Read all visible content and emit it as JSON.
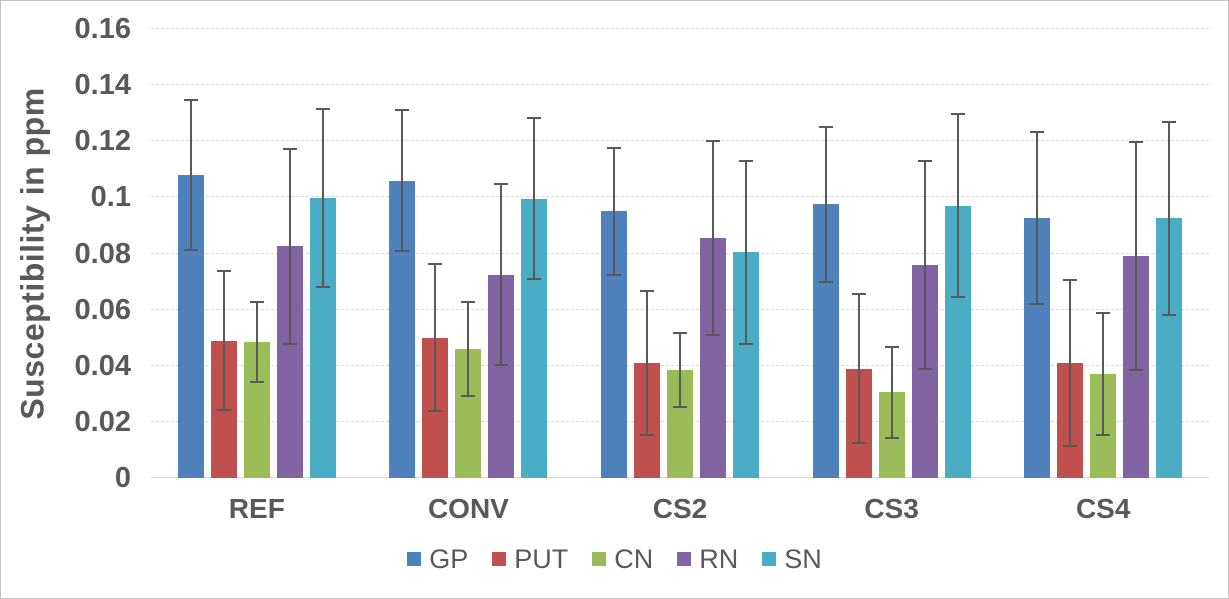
{
  "window": {
    "background": "#ffffff",
    "border_color": "#c3c3c3"
  },
  "chart_data": {
    "type": "bar",
    "title": "",
    "ylabel": "Susceptibility  in ppm",
    "xlabel": "",
    "ylim": [
      0,
      0.16
    ],
    "ytick_values": [
      0,
      0.02,
      0.04,
      0.06,
      0.08,
      0.1,
      0.12,
      0.14,
      0.16
    ],
    "ytick_labels": [
      "0",
      "0.02",
      "0.04",
      "0.06",
      "0.08",
      "0.1",
      "0.12",
      "0.14",
      "0.16"
    ],
    "grid": true,
    "gridline_color": "#d9d9d9",
    "gridline_style": "dashed",
    "axis_text_color": "#595959",
    "error_bar_color": "#595959",
    "legend_position": "bottom",
    "categories": [
      "REF",
      "CONV",
      "CS2",
      "CS3",
      "CS4"
    ],
    "series": [
      {
        "name": "GP",
        "color": "#4F81BD",
        "values": [
          0.108,
          0.106,
          0.095,
          0.0975,
          0.0925
        ],
        "errors": [
          0.027,
          0.0255,
          0.023,
          0.028,
          0.031
        ]
      },
      {
        "name": "PUT",
        "color": "#C0504D",
        "values": [
          0.049,
          0.05,
          0.041,
          0.039,
          0.041
        ],
        "errors": [
          0.025,
          0.0265,
          0.026,
          0.027,
          0.03
        ]
      },
      {
        "name": "CN",
        "color": "#9BBB59",
        "values": [
          0.0485,
          0.046,
          0.0385,
          0.0305,
          0.037
        ],
        "errors": [
          0.0145,
          0.017,
          0.0135,
          0.0165,
          0.022
        ]
      },
      {
        "name": "RN",
        "color": "#8064A2",
        "values": [
          0.0825,
          0.0725,
          0.0855,
          0.076,
          0.079
        ],
        "errors": [
          0.035,
          0.0325,
          0.0348,
          0.0375,
          0.041
        ]
      },
      {
        "name": "SN",
        "color": "#4BACC6",
        "values": [
          0.0998,
          0.0995,
          0.0805,
          0.097,
          0.0925
        ],
        "errors": [
          0.032,
          0.029,
          0.033,
          0.033,
          0.0347
        ]
      }
    ]
  }
}
